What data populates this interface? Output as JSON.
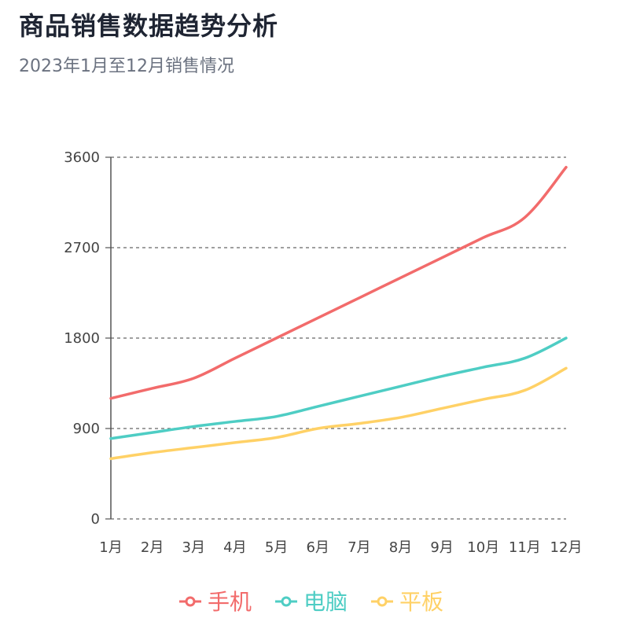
{
  "header": {
    "title": "商品销售数据趋势分析",
    "subtitle": "2023年1月至12月销售情况"
  },
  "chart_data": {
    "type": "line",
    "title": "商品销售数据趋势分析",
    "subtitle": "2023年1月至12月销售情况",
    "categories": [
      "1月",
      "2月",
      "3月",
      "4月",
      "5月",
      "6月",
      "7月",
      "8月",
      "9月",
      "10月",
      "11月",
      "12月"
    ],
    "ylim": [
      0,
      3600
    ],
    "yticks": [
      0,
      900,
      1800,
      2700,
      3600
    ],
    "grid": "horizontal-dashed",
    "legend": "bottom-center",
    "series": [
      {
        "name": "手机",
        "color": "#f26b6b",
        "values": [
          1200,
          1300,
          1400,
          1600,
          1800,
          2000,
          2200,
          2400,
          2600,
          2800,
          3000,
          3500
        ]
      },
      {
        "name": "电脑",
        "color": "#4ecdc4",
        "values": [
          800,
          860,
          920,
          970,
          1020,
          1120,
          1220,
          1320,
          1420,
          1510,
          1600,
          1800
        ]
      },
      {
        "name": "平板",
        "color": "#ffd166",
        "values": [
          600,
          660,
          710,
          760,
          810,
          900,
          950,
          1010,
          1100,
          1190,
          1280,
          1500
        ]
      }
    ]
  }
}
